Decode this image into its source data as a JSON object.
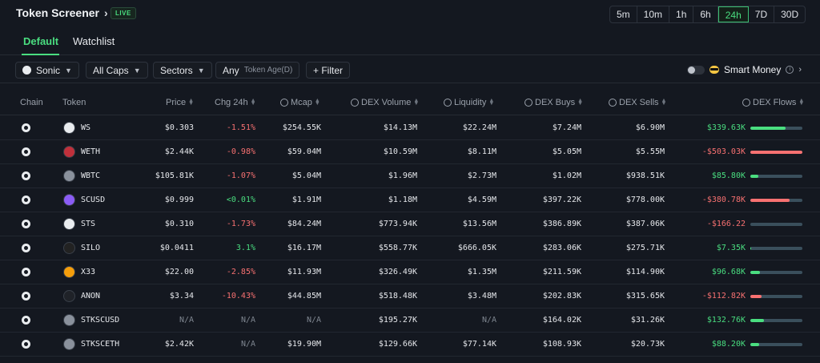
{
  "header": {
    "title": "Token Screener",
    "live_badge": "LIVE",
    "timeframes": [
      "5m",
      "10m",
      "1h",
      "6h",
      "24h",
      "7D",
      "30D"
    ],
    "active_timeframe": "24h"
  },
  "tabs": [
    {
      "label": "Default",
      "active": true
    },
    {
      "label": "Watchlist",
      "active": false
    }
  ],
  "filters": {
    "chain": "Sonic",
    "caps": "All Caps",
    "sectors": "Sectors",
    "token_age_value": "Any",
    "token_age_label": "Token Age(D)",
    "filter": "+ Filter",
    "smart_money": "Smart Money"
  },
  "columns": {
    "chain": "Chain",
    "token": "Token",
    "price": "Price",
    "chg": "Chg 24h",
    "mcap": "Mcap",
    "dex_volume": "DEX Volume",
    "liquidity": "Liquidity",
    "dex_buys": "DEX Buys",
    "dex_sells": "DEX Sells",
    "dex_flows": "DEX Flows"
  },
  "colors": {
    "positive": "#4ade80",
    "negative": "#f87171",
    "accent": "#4ade80"
  },
  "rows": [
    {
      "token": "WS",
      "icon": "ws-token-icon",
      "icon_color": "#e9ecef",
      "price": "$0.303",
      "chg": "-1.51%",
      "chg_dir": "neg",
      "mcap": "$254.55K",
      "volume": "$14.13M",
      "liquidity": "$22.24M",
      "buys": "$7.24M",
      "sells": "$6.90M",
      "flow": "$339.63K",
      "flow_dir": "pos",
      "flow_level": 0.68
    },
    {
      "token": "WETH",
      "icon": "weth-token-icon",
      "icon_color": "#c0303b",
      "price": "$2.44K",
      "chg": "-0.98%",
      "chg_dir": "neg",
      "mcap": "$59.04M",
      "volume": "$10.59M",
      "liquidity": "$8.11M",
      "buys": "$5.05M",
      "sells": "$5.55M",
      "flow": "-$503.03K",
      "flow_dir": "neg",
      "flow_level": 1.0
    },
    {
      "token": "WBTC",
      "icon": "wbtc-token-icon",
      "icon_color": "#8a919c",
      "price": "$105.81K",
      "chg": "-1.07%",
      "chg_dir": "neg",
      "mcap": "$5.04M",
      "volume": "$1.96M",
      "liquidity": "$2.73M",
      "buys": "$1.02M",
      "sells": "$938.51K",
      "flow": "$85.80K",
      "flow_dir": "pos",
      "flow_level": 0.15
    },
    {
      "token": "SCUSD",
      "icon": "scusd-token-icon",
      "icon_color": "#8b5cf6",
      "price": "$0.999",
      "chg": "<0.01%",
      "chg_dir": "pos",
      "mcap": "$1.91M",
      "volume": "$1.18M",
      "liquidity": "$4.59M",
      "buys": "$397.22K",
      "sells": "$778.00K",
      "flow": "-$380.78K",
      "flow_dir": "neg",
      "flow_level": 0.76
    },
    {
      "token": "STS",
      "icon": "sts-token-icon",
      "icon_color": "#e9ecef",
      "price": "$0.310",
      "chg": "-1.73%",
      "chg_dir": "neg",
      "mcap": "$84.24M",
      "volume": "$773.94K",
      "liquidity": "$13.56M",
      "buys": "$386.89K",
      "sells": "$387.06K",
      "flow": "-$166.22",
      "flow_dir": "neg",
      "flow_level": 0.0
    },
    {
      "token": "SILO",
      "icon": "silo-token-icon",
      "icon_color": "#222222",
      "price": "$0.0411",
      "chg": "3.1%",
      "chg_dir": "pos",
      "mcap": "$16.17M",
      "volume": "$558.77K",
      "liquidity": "$666.05K",
      "buys": "$283.06K",
      "sells": "$275.71K",
      "flow": "$7.35K",
      "flow_dir": "pos",
      "flow_level": 0.01
    },
    {
      "token": "X33",
      "icon": "x33-token-icon",
      "icon_color": "#f59e0b",
      "price": "$22.00",
      "chg": "-2.85%",
      "chg_dir": "neg",
      "mcap": "$11.93M",
      "volume": "$326.49K",
      "liquidity": "$1.35M",
      "buys": "$211.59K",
      "sells": "$114.90K",
      "flow": "$96.68K",
      "flow_dir": "pos",
      "flow_level": 0.19
    },
    {
      "token": "ANON",
      "icon": "anon-token-icon",
      "icon_color": "#1f2228",
      "price": "$3.34",
      "chg": "-10.43%",
      "chg_dir": "neg",
      "mcap": "$44.85M",
      "volume": "$518.48K",
      "liquidity": "$3.48M",
      "buys": "$202.83K",
      "sells": "$315.65K",
      "flow": "-$112.82K",
      "flow_dir": "neg",
      "flow_level": 0.22
    },
    {
      "token": "STKSCUSD",
      "icon": "stkscusd-token-icon",
      "icon_color": "#8a919c",
      "price": "N/A",
      "chg": "N/A",
      "chg_dir": "na",
      "mcap": "N/A",
      "volume": "$195.27K",
      "liquidity": "N/A",
      "buys": "$164.02K",
      "sells": "$31.26K",
      "flow": "$132.76K",
      "flow_dir": "pos",
      "flow_level": 0.26
    },
    {
      "token": "STKSCETH",
      "icon": "stksceth-token-icon",
      "icon_color": "#8a919c",
      "price": "$2.42K",
      "chg": "N/A",
      "chg_dir": "na",
      "mcap": "$19.90M",
      "volume": "$129.66K",
      "liquidity": "$77.14K",
      "buys": "$108.93K",
      "sells": "$20.73K",
      "flow": "$88.20K",
      "flow_dir": "pos",
      "flow_level": 0.17
    }
  ]
}
